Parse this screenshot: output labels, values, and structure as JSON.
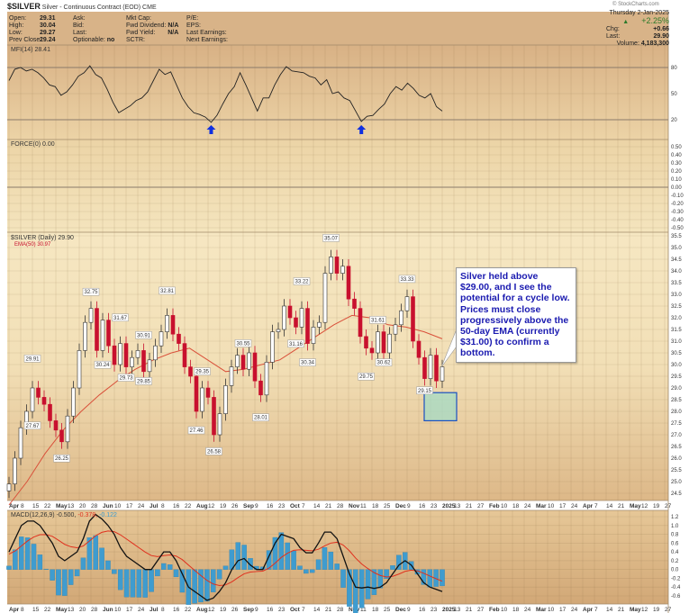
{
  "header": {
    "symbol": "$SILVER",
    "description": "Silver - Continuous Contract (EOD) CME",
    "credit": "© StockCharts.com",
    "date": "Thursday  2-Jan-2025",
    "pct_change": "+2.25%",
    "chg_label": "Chg:",
    "chg": "+0.66",
    "last_label": "Last:",
    "last": "29.90",
    "volume_label": "Volume:",
    "volume": "4,183,300",
    "fields": [
      {
        "label": "Open:",
        "value": "29.31"
      },
      {
        "label": "High:",
        "value": "30.04"
      },
      {
        "label": "Low:",
        "value": "29.27"
      },
      {
        "label": "Prev Close:",
        "value": "29.24"
      }
    ],
    "col2": [
      "Ask:",
      "Bid:",
      "Last:",
      "Optionable:"
    ],
    "optionable": "no",
    "col3": [
      "Mkt Cap:",
      "Fwd Dividend:",
      "Fwd Yield:",
      "SCTR:"
    ],
    "fwd_dividend": "N/A",
    "fwd_yield": "N/A",
    "col4": [
      "P/E:",
      "EPS:",
      "Last Earnings:",
      "Next Earnings:"
    ]
  },
  "colors": {
    "up": "#ffffff",
    "down": "#c8102e",
    "ema": "#d9503a",
    "macd": "#111111",
    "signal": "#e0301e",
    "hist": "#3f9ccf",
    "annotation": "#1a1ab0",
    "arrow": "#1030e0"
  },
  "annotation": "Silver held above $29.00, and I see the potential for a cycle low. Prices must close progressively above the 50-day EMA (currently $31.00) to confirm a bottom.",
  "chart_data": [
    {
      "type": "line",
      "title": "MFI(14) 28.41",
      "ylim": [
        0,
        100
      ],
      "yticks": [
        "80",
        "50",
        "20"
      ],
      "ref_lines": [
        80,
        20
      ],
      "values": [
        65,
        78,
        80,
        76,
        78,
        74,
        68,
        60,
        58,
        48,
        52,
        60,
        70,
        74,
        82,
        72,
        68,
        55,
        40,
        28,
        32,
        36,
        42,
        45,
        52,
        65,
        78,
        72,
        75,
        60,
        45,
        35,
        28,
        26,
        23,
        17,
        25,
        38,
        50,
        58,
        74,
        60,
        45,
        30,
        45,
        45,
        60,
        72,
        81,
        76,
        75,
        74,
        70,
        68,
        60,
        66,
        50,
        52,
        45,
        42,
        30,
        18,
        24,
        25,
        32,
        38,
        50,
        58,
        54,
        62,
        56,
        48,
        45,
        50,
        35,
        30
      ],
      "buy_signal_indices": [
        35,
        61
      ]
    },
    {
      "type": "line",
      "title": "FORCE(0) 0.00",
      "ylim": [
        -0.5,
        0.5
      ],
      "yticks": [
        "0.50",
        "0.40",
        "0.30",
        "0.20",
        "0.10",
        "0.00",
        "-0.10",
        "-0.20",
        "-0.30",
        "-0.40",
        "-0.50"
      ],
      "values": []
    },
    {
      "type": "candlestick",
      "title": "$SILVER (Daily) 29.90",
      "ema_label": "EMA(50) 30.97",
      "ylim": [
        24.5,
        35.5
      ],
      "yticks": [
        "35.5",
        "35.0",
        "34.5",
        "34.0",
        "33.5",
        "33.0",
        "32.5",
        "32.0",
        "31.5",
        "31.0",
        "30.5",
        "30.0",
        "29.5",
        "29.0",
        "28.5",
        "28.0",
        "27.5",
        "27.0",
        "26.5",
        "26.0",
        "25.5",
        "25.0",
        "24.5"
      ],
      "closes": [
        24.9,
        26.0,
        27.3,
        28.0,
        29.0,
        28.6,
        28.3,
        27.6,
        27.2,
        26.7,
        27.8,
        29.0,
        30.6,
        31.8,
        32.4,
        30.6,
        31.9,
        30.8,
        30.0,
        30.9,
        29.9,
        30.3,
        30.6,
        29.7,
        30.2,
        30.8,
        31.4,
        32.1,
        31.3,
        30.9,
        29.9,
        29.5,
        28.0,
        29.0,
        28.6,
        27.0,
        27.9,
        29.1,
        29.9,
        30.4,
        29.8,
        30.5,
        29.3,
        28.7,
        30.1,
        31.4,
        31.5,
        32.5,
        32.0,
        31.6,
        32.4,
        30.9,
        31.6,
        31.8,
        33.9,
        34.6,
        33.9,
        34.2,
        32.8,
        32.4,
        31.2,
        30.7,
        30.5,
        31.4,
        30.5,
        31.3,
        31.7,
        32.3,
        32.9,
        31.0,
        30.3,
        29.4,
        30.4,
        29.3,
        29.9
      ],
      "ema50": [
        24.0,
        25.0,
        26.2,
        27.2,
        28.0,
        28.7,
        29.3,
        29.8,
        30.2,
        30.5,
        30.7,
        30.2,
        29.7,
        29.8,
        30.0,
        30.2,
        30.7,
        31.2,
        31.7,
        32.1,
        32.0,
        31.7,
        31.6,
        31.4,
        31.1
      ],
      "price_labels": [
        {
          "i": 4,
          "text": "29.91",
          "pos": "above",
          "price": 29.95
        },
        {
          "i": 4,
          "text": "27.67",
          "pos": "below",
          "price": 27.7
        },
        {
          "i": 9,
          "text": "26.25",
          "pos": "below",
          "price": 26.3
        },
        {
          "i": 14,
          "text": "32.75",
          "pos": "above",
          "price": 32.8
        },
        {
          "i": 16,
          "text": "30.24",
          "pos": "below",
          "price": 30.3
        },
        {
          "i": 19,
          "text": "31.67",
          "pos": "above",
          "price": 31.7
        },
        {
          "i": 20,
          "text": "29.73",
          "pos": "below",
          "price": 29.75
        },
        {
          "i": 23,
          "text": "30.91",
          "pos": "above",
          "price": 30.95
        },
        {
          "i": 23,
          "text": "29.85",
          "pos": "below",
          "price": 29.6
        },
        {
          "i": 27,
          "text": "32.81",
          "pos": "above",
          "price": 32.85
        },
        {
          "i": 32,
          "text": "27.46",
          "pos": "below",
          "price": 27.5
        },
        {
          "i": 33,
          "text": "29.35",
          "pos": "above",
          "price": 29.4
        },
        {
          "i": 35,
          "text": "26.58",
          "pos": "below",
          "price": 26.6
        },
        {
          "i": 40,
          "text": "30.55",
          "pos": "above",
          "price": 30.6
        },
        {
          "i": 43,
          "text": "28.01",
          "pos": "below",
          "price": 28.05
        },
        {
          "i": 49,
          "text": "31.16",
          "pos": "below",
          "price": 31.2
        },
        {
          "i": 50,
          "text": "33.22",
          "pos": "above",
          "price": 33.25
        },
        {
          "i": 51,
          "text": "30.34",
          "pos": "below",
          "price": 30.4
        },
        {
          "i": 55,
          "text": "35.07",
          "pos": "above",
          "price": 35.1
        },
        {
          "i": 61,
          "text": "29.75",
          "pos": "below",
          "price": 29.8
        },
        {
          "i": 63,
          "text": "31.61",
          "pos": "above",
          "price": 31.6
        },
        {
          "i": 64,
          "text": "30.62",
          "pos": "below",
          "price": 30.4
        },
        {
          "i": 68,
          "text": "33.33",
          "pos": "above",
          "price": 33.35
        },
        {
          "i": 71,
          "text": "29.15",
          "pos": "below",
          "price": 29.2
        }
      ],
      "target_zone": [
        27.6,
        28.8
      ]
    },
    {
      "type": "macd",
      "title": "MACD(12,26,9)",
      "legend_values": {
        "macd": "-0.500,",
        "signal": "-0.378,",
        "histogram": "-0.122"
      },
      "signal_period": 9,
      "ylim": [
        -0.8,
        1.3
      ],
      "yticks": [
        "1.2",
        "1.0",
        "0.8",
        "0.6",
        "0.4",
        "0.2",
        "0.0",
        "-0.2",
        "-0.4",
        "-0.6"
      ],
      "macd": [
        0.4,
        0.7,
        1.0,
        1.1,
        1.1,
        1.0,
        0.8,
        0.6,
        0.3,
        0.2,
        0.3,
        0.4,
        0.7,
        1.1,
        1.25,
        1.15,
        1.0,
        0.8,
        0.5,
        0.3,
        0.2,
        0.1,
        0.0,
        0.0,
        0.2,
        0.4,
        0.4,
        0.2,
        -0.1,
        -0.4,
        -0.5,
        -0.6,
        -0.7,
        -0.65,
        -0.5,
        -0.3,
        0.0,
        0.2,
        0.25,
        0.1,
        0.0,
        0.0,
        0.3,
        0.6,
        0.8,
        0.75,
        0.7,
        0.5,
        0.38,
        0.38,
        0.6,
        0.85,
        0.85,
        0.7,
        0.3,
        -0.1,
        -0.4,
        -0.42,
        -0.4,
        -0.43,
        -0.4,
        -0.3,
        -0.1,
        0.1,
        0.2,
        0.1,
        -0.1,
        -0.3,
        -0.4,
        -0.45,
        -0.5
      ]
    }
  ],
  "x_axis": {
    "labels": [
      "Apr",
      "8",
      "15",
      "22",
      "May",
      "13",
      "20",
      "28",
      "Jun",
      "10",
      "17",
      "24",
      "Jul",
      "8",
      "16",
      "22",
      "Aug",
      "12",
      "19",
      "26",
      "Sep",
      "9",
      "16",
      "23",
      "Oct",
      "7",
      "14",
      "21",
      "28",
      "Nov",
      "11",
      "18",
      "25",
      "Dec",
      "9",
      "16",
      "23",
      "2025",
      "13",
      "21",
      "27",
      "Feb",
      "10",
      "18",
      "24",
      "Mar",
      "10",
      "17",
      "24",
      "Apr",
      "7",
      "14",
      "21",
      "May",
      "12",
      "19",
      "27"
    ],
    "bold": [
      "Apr",
      "May",
      "Jun",
      "Jul",
      "Aug",
      "Sep",
      "Oct",
      "Nov",
      "Dec",
      "2025",
      "Feb",
      "Mar"
    ]
  }
}
